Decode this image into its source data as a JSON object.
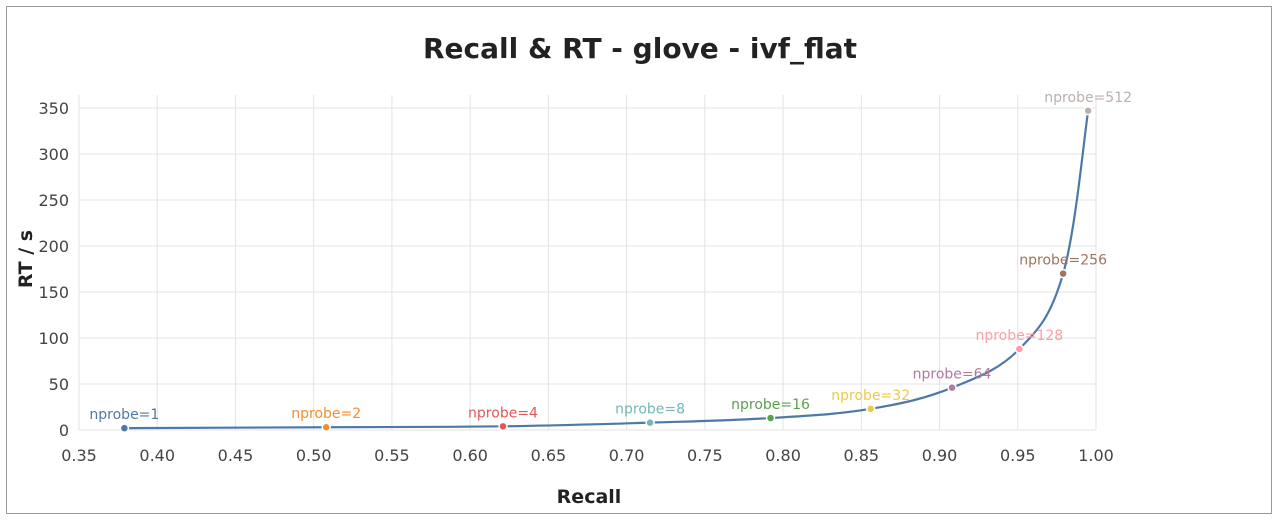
{
  "chart_data": {
    "type": "line",
    "title": "Recall & RT - glove - ivf_flat",
    "xlabel": "Recall",
    "ylabel": "RT / s",
    "xlim": [
      0.35,
      1.0
    ],
    "ylim": [
      0,
      350
    ],
    "x_ticks": [
      "0.35",
      "0.40",
      "0.45",
      "0.50",
      "0.55",
      "0.60",
      "0.65",
      "0.70",
      "0.75",
      "0.80",
      "0.85",
      "0.90",
      "0.95",
      "1.00"
    ],
    "y_ticks": [
      "0",
      "50",
      "100",
      "150",
      "200",
      "250",
      "300",
      "350"
    ],
    "grid": true,
    "line_color": "#4e79a7",
    "points": [
      {
        "label": "nprobe=1",
        "x": 0.379,
        "y": 2,
        "color": "#4e79a7"
      },
      {
        "label": "nprobe=2",
        "x": 0.508,
        "y": 3,
        "color": "#f28e2b"
      },
      {
        "label": "nprobe=4",
        "x": 0.621,
        "y": 4,
        "color": "#e15759"
      },
      {
        "label": "nprobe=8",
        "x": 0.715,
        "y": 8,
        "color": "#76b7b2"
      },
      {
        "label": "nprobe=16",
        "x": 0.792,
        "y": 13,
        "color": "#59a14f"
      },
      {
        "label": "nprobe=32",
        "x": 0.856,
        "y": 23,
        "color": "#edc948"
      },
      {
        "label": "nprobe=64",
        "x": 0.908,
        "y": 46,
        "color": "#b07aa1"
      },
      {
        "label": "nprobe=128",
        "x": 0.951,
        "y": 88,
        "color": "#ff9da7"
      },
      {
        "label": "nprobe=256",
        "x": 0.979,
        "y": 170,
        "color": "#9c755f"
      },
      {
        "label": "nprobe=512",
        "x": 0.995,
        "y": 347,
        "color": "#bab0ac"
      }
    ]
  }
}
